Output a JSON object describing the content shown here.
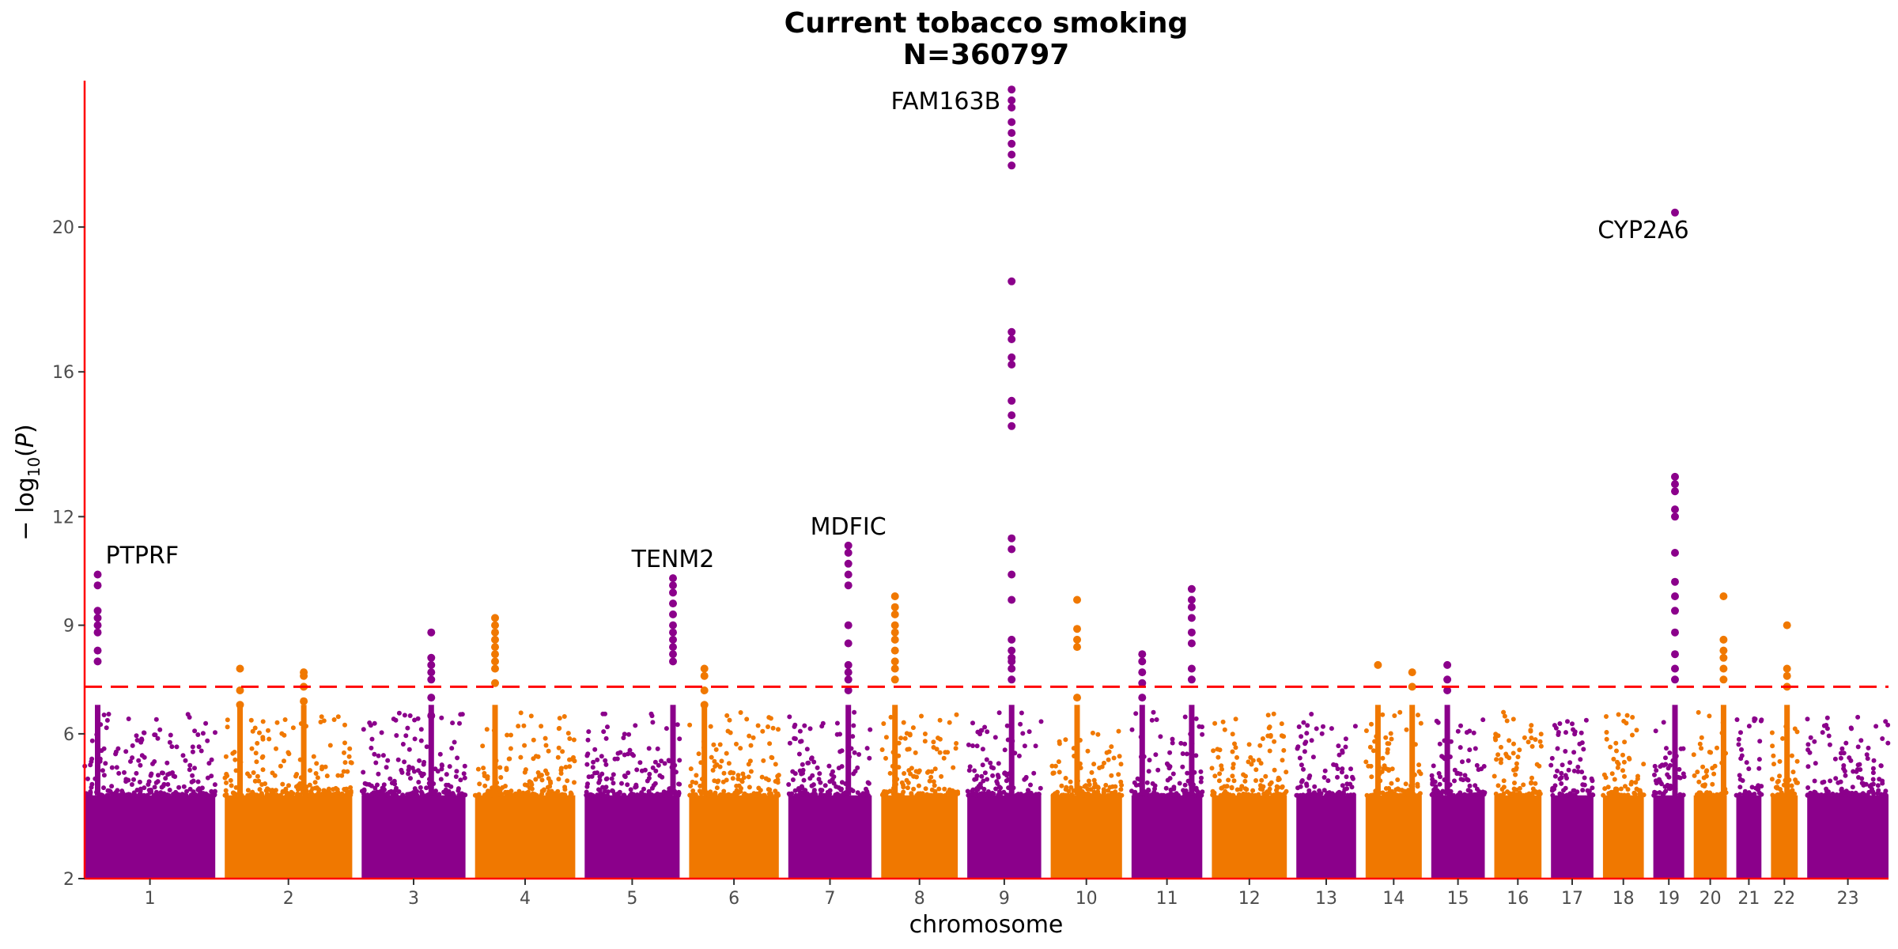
{
  "chart_data": {
    "type": "scatter",
    "subtype": "manhattan",
    "title": "Current tobacco smoking",
    "subtitle": "N=360797",
    "xlabel": "chromosome",
    "ylabel": "− log10(P)",
    "ylim": [
      2,
      24
    ],
    "y_ticks": [
      2,
      6,
      9,
      12,
      16,
      20
    ],
    "significance_threshold": 7.3,
    "threshold_style": "dashed red line",
    "grid": false,
    "legend": "none",
    "colors": {
      "odd_chromosome": "#8b008b",
      "even_chromosome": "#f07800",
      "threshold": "#ff0000",
      "axis": "#ff0000"
    },
    "chromosomes": [
      {
        "label": "1",
        "size": 249
      },
      {
        "label": "2",
        "size": 243
      },
      {
        "label": "3",
        "size": 198
      },
      {
        "label": "4",
        "size": 191
      },
      {
        "label": "5",
        "size": 181
      },
      {
        "label": "6",
        "size": 171
      },
      {
        "label": "7",
        "size": 159
      },
      {
        "label": "8",
        "size": 146
      },
      {
        "label": "9",
        "size": 141
      },
      {
        "label": "10",
        "size": 136
      },
      {
        "label": "11",
        "size": 135
      },
      {
        "label": "12",
        "size": 143
      },
      {
        "label": "13",
        "size": 114
      },
      {
        "label": "14",
        "size": 107
      },
      {
        "label": "15",
        "size": 102
      },
      {
        "label": "16",
        "size": 90
      },
      {
        "label": "17",
        "size": 81
      },
      {
        "label": "18",
        "size": 78
      },
      {
        "label": "19",
        "size": 59
      },
      {
        "label": "20",
        "size": 63
      },
      {
        "label": "21",
        "size": 48
      },
      {
        "label": "22",
        "size": 51
      },
      {
        "label": "23",
        "size": 155
      }
    ],
    "peaks": [
      {
        "chr": "1",
        "pos": 0.1,
        "values": [
          8.0,
          8.3,
          8.8,
          9.0,
          9.2,
          9.4,
          10.1,
          10.4
        ]
      },
      {
        "chr": "2",
        "pos": 0.12,
        "values": [
          6.8,
          7.2,
          7.8
        ]
      },
      {
        "chr": "2",
        "pos": 0.62,
        "values": [
          6.9,
          7.3,
          7.6,
          7.7
        ]
      },
      {
        "chr": "3",
        "pos": 0.67,
        "values": [
          6.5,
          7.0,
          7.5,
          7.7,
          7.9,
          8.1,
          8.8
        ]
      },
      {
        "chr": "4",
        "pos": 0.2,
        "values": [
          7.4,
          7.8,
          8.0,
          8.2,
          8.4,
          8.6,
          8.8,
          9.0,
          9.2
        ]
      },
      {
        "chr": "5",
        "pos": 0.93,
        "values": [
          8.0,
          8.2,
          8.4,
          8.6,
          8.8,
          9.0,
          9.3,
          9.6,
          9.9,
          10.1,
          10.3
        ]
      },
      {
        "chr": "6",
        "pos": 0.17,
        "values": [
          6.8,
          7.2,
          7.6,
          7.8
        ]
      },
      {
        "chr": "7",
        "pos": 0.72,
        "values": [
          7.2,
          7.5,
          7.7,
          7.9,
          8.5,
          9.0,
          10.1,
          10.4,
          10.7,
          11.0,
          11.2
        ]
      },
      {
        "chr": "8",
        "pos": 0.18,
        "values": [
          7.5,
          7.8,
          8.0,
          8.3,
          8.6,
          8.8,
          9.0,
          9.3,
          9.5,
          9.8
        ]
      },
      {
        "chr": "9",
        "pos": 0.6,
        "values": [
          7.5,
          7.8,
          8.0,
          8.1,
          8.3,
          8.6,
          9.7,
          10.4,
          11.1,
          11.4,
          14.5,
          14.8,
          15.2,
          16.2,
          16.4,
          16.9,
          17.1,
          18.5,
          21.7,
          22.0,
          22.3,
          22.6,
          22.9,
          23.3,
          23.5,
          23.8
        ]
      },
      {
        "chr": "10",
        "pos": 0.37,
        "values": [
          7.0,
          8.4,
          8.6,
          8.9,
          9.7
        ]
      },
      {
        "chr": "11",
        "pos": 0.15,
        "values": [
          7.0,
          7.4,
          7.7,
          8.0,
          8.2
        ]
      },
      {
        "chr": "11",
        "pos": 0.85,
        "values": [
          7.5,
          7.8,
          8.5,
          8.8,
          9.2,
          9.5,
          9.7,
          10.0
        ]
      },
      {
        "chr": "14",
        "pos": 0.22,
        "values": [
          7.9
        ]
      },
      {
        "chr": "14",
        "pos": 0.83,
        "values": [
          7.3,
          7.7
        ]
      },
      {
        "chr": "15",
        "pos": 0.3,
        "values": [
          7.2,
          7.5,
          7.9
        ]
      },
      {
        "chr": "19",
        "pos": 0.7,
        "values": [
          7.5,
          7.8,
          8.2,
          8.8,
          9.4,
          9.8,
          10.2,
          11.0,
          12.0,
          12.2,
          12.7,
          12.9,
          13.1,
          20.4
        ]
      },
      {
        "chr": "20",
        "pos": 0.9,
        "values": [
          7.5,
          7.8,
          8.1,
          8.3,
          8.6,
          9.8
        ]
      },
      {
        "chr": "22",
        "pos": 0.6,
        "values": [
          7.3,
          7.6,
          7.8,
          9.0
        ]
      }
    ],
    "annotations": [
      {
        "text": "PTPRF",
        "chr": "1",
        "pos": 0.1,
        "y": 10.4
      },
      {
        "text": "TENM2",
        "chr": "5",
        "pos": 0.93,
        "y": 10.3
      },
      {
        "text": "MDFIC",
        "chr": "7",
        "pos": 0.72,
        "y": 11.2
      },
      {
        "text": "FAM163B",
        "chr": "9",
        "pos": 0.6,
        "y": 23.8
      },
      {
        "text": "CYP2A6",
        "chr": "19",
        "pos": 0.7,
        "y": 20.4
      }
    ]
  }
}
